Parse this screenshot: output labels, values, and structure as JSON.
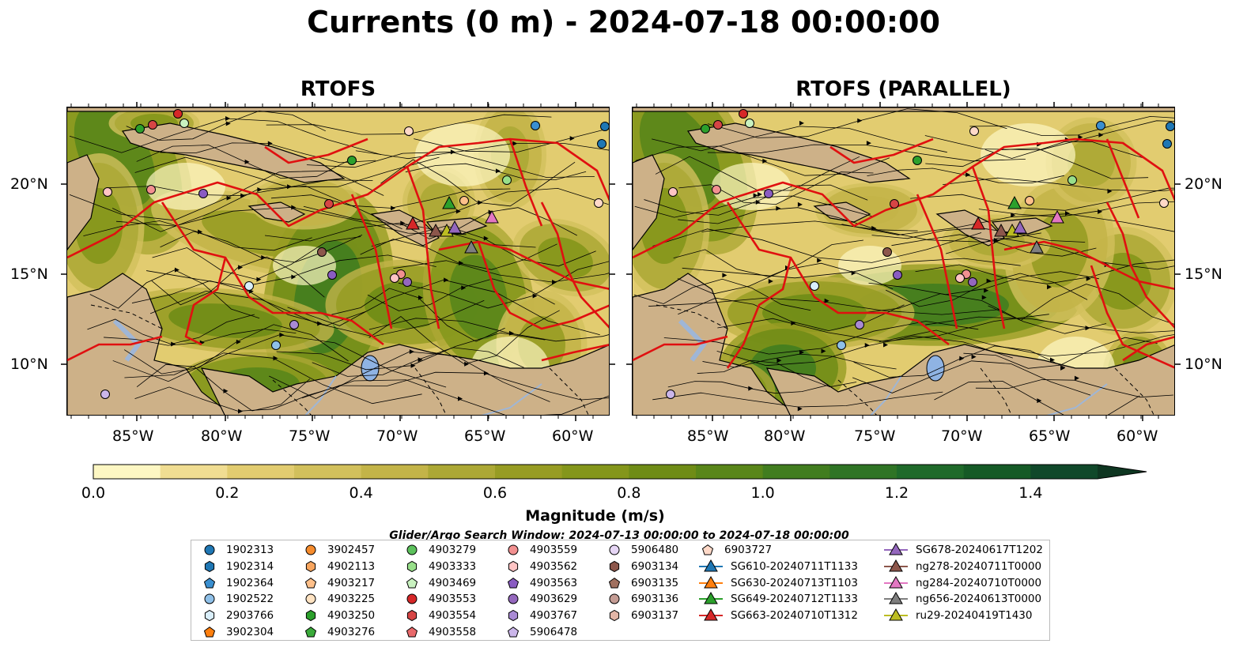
{
  "title": "Currents (0 m) - 2024-07-18 00:00:00",
  "panels": [
    {
      "title": "RTOFS"
    },
    {
      "title": "RTOFS (PARALLEL)"
    }
  ],
  "lat_labels": [
    "20°N",
    "15°N",
    "10°N"
  ],
  "lon_labels": [
    "85°W",
    "80°W",
    "75°W",
    "70°W",
    "65°W",
    "60°W"
  ],
  "colorbar": {
    "label": "Magnitude (m/s)",
    "ticks": [
      "0.0",
      "0.2",
      "0.4",
      "0.6",
      "0.8",
      "1.0",
      "1.2",
      "1.4"
    ],
    "range": [
      0.0,
      1.5
    ],
    "extend": "max",
    "colors": [
      "#fdf7c3",
      "#f0dd92",
      "#e2cc70",
      "#d2c05c",
      "#c3b448",
      "#aca835",
      "#979c23",
      "#84961b",
      "#6f8c16",
      "#598619",
      "#417d1f",
      "#2f7425",
      "#1f6a2a",
      "#155a26",
      "#10482a",
      "#0e3621"
    ]
  },
  "search_window": "Glider/Argo Search Window: 2024-07-13 00:00:00 to 2024-07-18 00:00:00",
  "legend": {
    "columns": [
      [
        {
          "label": "1902313",
          "marker": "circle",
          "color": "#1f77b4"
        },
        {
          "label": "1902314",
          "marker": "hexagon",
          "color": "#1f77b4"
        },
        {
          "label": "1902364",
          "marker": "pentagon",
          "color": "#3a8fd0"
        },
        {
          "label": "1902522",
          "marker": "circle",
          "color": "#8fc0e8"
        },
        {
          "label": "2903766",
          "marker": "hexagon",
          "color": "#d9eefa"
        },
        {
          "label": "3902304",
          "marker": "pentagon",
          "color": "#ff7f0e"
        }
      ],
      [
        {
          "label": "3902457",
          "marker": "circle",
          "color": "#f68c2d"
        },
        {
          "label": "4902113",
          "marker": "hexagon",
          "color": "#f8a55e"
        },
        {
          "label": "4903217",
          "marker": "pentagon",
          "color": "#ffc08a"
        },
        {
          "label": "4903225",
          "marker": "circle",
          "color": "#ffe3c2"
        },
        {
          "label": "4903250",
          "marker": "hexagon",
          "color": "#2ca02c"
        },
        {
          "label": "4903276",
          "marker": "pentagon",
          "color": "#3aaa3a"
        }
      ],
      [
        {
          "label": "4903279",
          "marker": "circle",
          "color": "#5cc15c"
        },
        {
          "label": "4903333",
          "marker": "hexagon",
          "color": "#98df8a"
        },
        {
          "label": "4903469",
          "marker": "pentagon",
          "color": "#c9f2c0"
        },
        {
          "label": "4903553",
          "marker": "circle",
          "color": "#d62728"
        },
        {
          "label": "4903554",
          "marker": "hexagon",
          "color": "#d64545"
        },
        {
          "label": "4903558",
          "marker": "pentagon",
          "color": "#e8686a"
        }
      ],
      [
        {
          "label": "4903559",
          "marker": "circle",
          "color": "#f29090"
        },
        {
          "label": "4903562",
          "marker": "hexagon",
          "color": "#ffc4c4"
        },
        {
          "label": "4903563",
          "marker": "pentagon",
          "color": "#8a5cc2"
        },
        {
          "label": "4903629",
          "marker": "circle",
          "color": "#9467bd"
        },
        {
          "label": "4903767",
          "marker": "hexagon",
          "color": "#a98ad4"
        },
        {
          "label": "5906478",
          "marker": "pentagon",
          "color": "#cbb6ea"
        }
      ],
      [
        {
          "label": "5906480",
          "marker": "circle",
          "color": "#e6d6f5"
        },
        {
          "label": "6903134",
          "marker": "hexagon",
          "color": "#8c564b"
        },
        {
          "label": "6903135",
          "marker": "pentagon",
          "color": "#a0705f"
        },
        {
          "label": "6903136",
          "marker": "circle",
          "color": "#c49c94"
        },
        {
          "label": "6903137",
          "marker": "hexagon",
          "color": "#e2b5a6"
        }
      ],
      [
        {
          "label": "6903727",
          "marker": "pentagon",
          "color": "#ffd9c8"
        },
        {
          "label": "SG610-20240711T1133",
          "marker": "triangle-line",
          "color": "#1f77b4"
        },
        {
          "label": "SG630-20240713T1103",
          "marker": "triangle-line",
          "color": "#ff7f0e"
        },
        {
          "label": "SG649-20240712T1133",
          "marker": "triangle-line",
          "color": "#2ca02c"
        },
        {
          "label": "SG663-20240710T1312",
          "marker": "triangle-line",
          "color": "#d62728"
        }
      ],
      [
        {
          "label": "SG678-20240617T1202",
          "marker": "triangle-line",
          "color": "#9467bd"
        },
        {
          "label": "ng278-20240711T0000",
          "marker": "triangle-line",
          "color": "#8c564b"
        },
        {
          "label": "ng284-20240710T0000",
          "marker": "triangle-line",
          "color": "#e377c2"
        },
        {
          "label": "ng656-20240613T0000",
          "marker": "triangle-line",
          "color": "#7f7f7f"
        },
        {
          "label": "ru29-20240419T1430",
          "marker": "triangle-line",
          "color": "#bcbd22"
        }
      ]
    ]
  }
}
